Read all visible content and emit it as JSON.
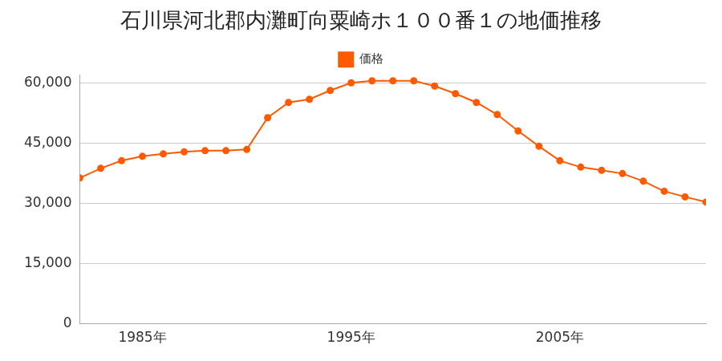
{
  "chart_data": {
    "type": "line",
    "title": "石川県河北郡内灘町向粟崎ホ１００番１の地価推移",
    "categories": [
      null,
      null,
      null,
      "1985年",
      null,
      null,
      null,
      null,
      null,
      null,
      null,
      null,
      null,
      "1995年",
      null,
      null,
      null,
      null,
      null,
      null,
      null,
      null,
      null,
      "2005年",
      null,
      null,
      null,
      null,
      null,
      null,
      null
    ],
    "series": [
      {
        "name": "価格",
        "color": "#ff5a00",
        "marker": "circle",
        "values": [
          36300,
          38700,
          40600,
          41700,
          42300,
          42800,
          43100,
          43100,
          43400,
          51300,
          55100,
          55900,
          58100,
          60000,
          60500,
          60500,
          60500,
          59200,
          57300,
          55100,
          52100,
          48000,
          44200,
          40600,
          39000,
          38200,
          37400,
          35500,
          33000,
          31600,
          30300
        ]
      }
    ],
    "ylim": [
      0,
      62000
    ],
    "yticks": [
      0,
      {
        "value": 15000,
        "label": "15,000"
      },
      {
        "value": 30000,
        "label": "30,000"
      },
      {
        "value": 45000,
        "label": "45,000"
      },
      {
        "value": 60000,
        "label": "60,000"
      }
    ],
    "grid": true,
    "legend": "top"
  }
}
